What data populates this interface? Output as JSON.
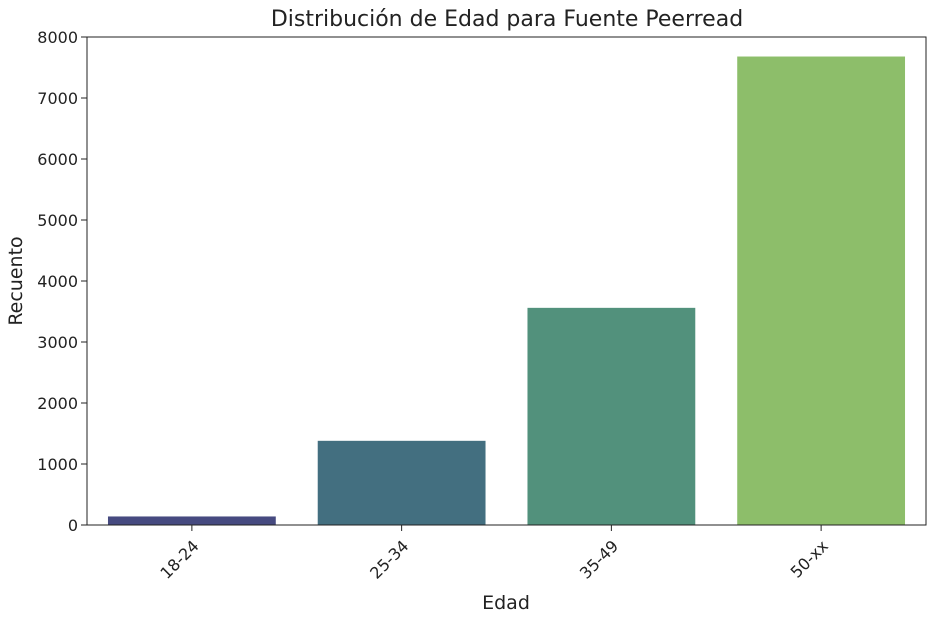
{
  "chart_data": {
    "type": "bar",
    "title": "Distribución de Edad para Fuente Peerread",
    "xlabel": "Edad",
    "ylabel": "Recuento",
    "categories": [
      "18-24",
      "25-34",
      "35-49",
      "50-xx"
    ],
    "values": [
      140,
      1380,
      3560,
      7680
    ],
    "colors": [
      "#464a80",
      "#436f80",
      "#52917c",
      "#8dbe6a"
    ],
    "ylim": [
      0,
      8000
    ],
    "yticks": [
      0,
      1000,
      2000,
      3000,
      4000,
      5000,
      6000,
      7000,
      8000
    ],
    "grid": false,
    "legend": false
  }
}
